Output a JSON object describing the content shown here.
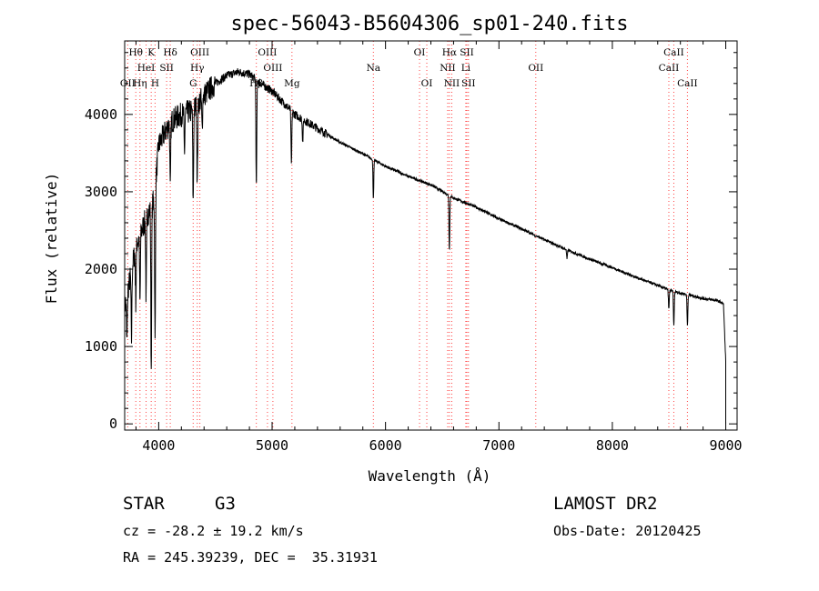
{
  "chart_data": {
    "type": "line",
    "title": "spec-56043-B5604306_sp01-240.fits",
    "xlabel": "Wavelength (Å)",
    "ylabel": "Flux (relative)",
    "xlim": [
      3700,
      9100
    ],
    "ylim": [
      -80,
      4950
    ],
    "x_ticks": [
      4000,
      5000,
      6000,
      7000,
      8000,
      9000
    ],
    "y_ticks": [
      0,
      1000,
      2000,
      3000,
      4000
    ],
    "grid": false,
    "line_color": "#000000",
    "marker_color": "#ff4040",
    "spectral_lines": [
      {
        "label": "Hθ",
        "wavelength": 3798,
        "row": 0
      },
      {
        "label": "K",
        "wavelength": 3934,
        "row": 0
      },
      {
        "label": "Hδ",
        "wavelength": 4102,
        "row": 0
      },
      {
        "label": "OIII",
        "wavelength": 4363,
        "row": 0
      },
      {
        "label": "OIII",
        "wavelength": 4959,
        "row": 0
      },
      {
        "label": "OI",
        "wavelength": 6300,
        "row": 0
      },
      {
        "label": "Hα",
        "wavelength": 6563,
        "row": 0
      },
      {
        "label": "SII",
        "wavelength": 6717,
        "row": 0
      },
      {
        "label": "CaII",
        "wavelength": 8542,
        "row": 0
      },
      {
        "label": "HeI",
        "wavelength": 3889,
        "row": 1
      },
      {
        "label": "SII",
        "wavelength": 4070,
        "row": 1
      },
      {
        "label": "Hγ",
        "wavelength": 4340,
        "row": 1
      },
      {
        "label": "OIII",
        "wavelength": 5007,
        "row": 1
      },
      {
        "label": "Na",
        "wavelength": 5893,
        "row": 1
      },
      {
        "label": "NII",
        "wavelength": 6548,
        "row": 1
      },
      {
        "label": "Li",
        "wavelength": 6708,
        "row": 1
      },
      {
        "label": "OII",
        "wavelength": 7325,
        "row": 1
      },
      {
        "label": "CaII",
        "wavelength": 8498,
        "row": 1
      },
      {
        "label": "OII",
        "wavelength": 3727,
        "row": 2
      },
      {
        "label": "Hη",
        "wavelength": 3835,
        "row": 2
      },
      {
        "label": "H",
        "wavelength": 3968,
        "row": 2
      },
      {
        "label": "G",
        "wavelength": 4304,
        "row": 2
      },
      {
        "label": "Hβ",
        "wavelength": 4861,
        "row": 2
      },
      {
        "label": "Mg",
        "wavelength": 5175,
        "row": 2
      },
      {
        "label": "OI",
        "wavelength": 6364,
        "row": 2
      },
      {
        "label": "NII",
        "wavelength": 6584,
        "row": 2
      },
      {
        "label": "SII",
        "wavelength": 6731,
        "row": 2
      },
      {
        "label": "CaII",
        "wavelength": 8662,
        "row": 2
      }
    ],
    "continuum": [
      [
        3700,
        1500
      ],
      [
        3800,
        2300
      ],
      [
        3900,
        2700
      ],
      [
        3960,
        2900
      ],
      [
        4000,
        3600
      ],
      [
        4100,
        3900
      ],
      [
        4200,
        4000
      ],
      [
        4300,
        4050
      ],
      [
        4400,
        4250
      ],
      [
        4500,
        4400
      ],
      [
        4600,
        4500
      ],
      [
        4700,
        4550
      ],
      [
        4800,
        4520
      ],
      [
        4900,
        4400
      ],
      [
        5000,
        4300
      ],
      [
        5100,
        4150
      ],
      [
        5200,
        4000
      ],
      [
        5400,
        3820
      ],
      [
        5600,
        3640
      ],
      [
        5800,
        3490
      ],
      [
        6000,
        3330
      ],
      [
        6200,
        3200
      ],
      [
        6400,
        3090
      ],
      [
        6600,
        2920
      ],
      [
        6800,
        2800
      ],
      [
        7000,
        2650
      ],
      [
        7200,
        2520
      ],
      [
        7400,
        2380
      ],
      [
        7600,
        2250
      ],
      [
        7800,
        2130
      ],
      [
        8000,
        2020
      ],
      [
        8200,
        1900
      ],
      [
        8400,
        1790
      ],
      [
        8500,
        1730
      ],
      [
        8600,
        1690
      ],
      [
        8700,
        1660
      ],
      [
        8800,
        1620
      ],
      [
        8900,
        1600
      ],
      [
        8950,
        1580
      ],
      [
        8980,
        1550
      ],
      [
        9000,
        800
      ]
    ],
    "absorption": [
      {
        "wavelength": 3720,
        "depth": 600
      },
      {
        "wavelength": 3760,
        "depth": 900
      },
      {
        "wavelength": 3798,
        "depth": 700
      },
      {
        "wavelength": 3835,
        "depth": 900
      },
      {
        "wavelength": 3889,
        "depth": 1000
      },
      {
        "wavelength": 3934,
        "depth": 2100
      },
      {
        "wavelength": 3968,
        "depth": 2000
      },
      {
        "wavelength": 4102,
        "depth": 900
      },
      {
        "wavelength": 4227,
        "depth": 500
      },
      {
        "wavelength": 4304,
        "depth": 1200
      },
      {
        "wavelength": 4340,
        "depth": 1000
      },
      {
        "wavelength": 4383,
        "depth": 400
      },
      {
        "wavelength": 4861,
        "depth": 1400
      },
      {
        "wavelength": 5170,
        "depth": 700
      },
      {
        "wavelength": 5270,
        "depth": 300
      },
      {
        "wavelength": 5893,
        "depth": 500
      },
      {
        "wavelength": 6563,
        "depth": 700
      },
      {
        "wavelength": 7600,
        "depth": 120
      },
      {
        "wavelength": 8498,
        "depth": 250
      },
      {
        "wavelength": 8542,
        "depth": 450
      },
      {
        "wavelength": 8662,
        "depth": 400
      }
    ]
  },
  "info": {
    "class_label": "STAR",
    "subclass": "G3",
    "survey": "LAMOST DR2",
    "redshift": "cz = -28.2 ± 19.2 km/s",
    "obs_date": "Obs-Date: 20120425",
    "coords": "RA = 245.39239, DEC =  35.31931"
  }
}
